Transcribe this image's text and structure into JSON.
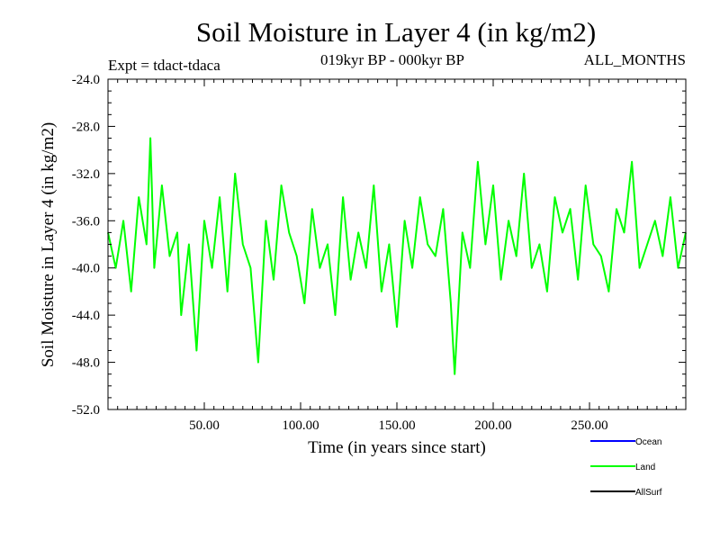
{
  "chart_data": {
    "type": "line",
    "title": "Soil Moisture in Layer 4 (in kg/m2)",
    "subtitle_left": "Expt = tdact-tdaca",
    "subtitle_center": "019kyr BP - 000kyr BP",
    "subtitle_right": "ALL_MONTHS",
    "xlabel": "Time (in years since start)",
    "ylabel": "Soil Moisture in Layer 4 (in kg/m2)",
    "xlim": [
      0,
      300
    ],
    "ylim": [
      -52,
      -24
    ],
    "x_ticks": [
      {
        "value": 50,
        "label": "50.00"
      },
      {
        "value": 100,
        "label": "100.00"
      },
      {
        "value": 150,
        "label": "150.00"
      },
      {
        "value": 200,
        "label": "200.00"
      },
      {
        "value": 250,
        "label": "250.00"
      }
    ],
    "y_ticks": [
      {
        "value": -24,
        "label": "-24.0"
      },
      {
        "value": -28,
        "label": "-28.0"
      },
      {
        "value": -32,
        "label": "-32.0"
      },
      {
        "value": -36,
        "label": "-36.0"
      },
      {
        "value": -40,
        "label": "-40.0"
      },
      {
        "value": -44,
        "label": "-44.0"
      },
      {
        "value": -48,
        "label": "-48.0"
      },
      {
        "value": -52,
        "label": "-52.0"
      }
    ],
    "grid": false,
    "legend_position": "bottom-right",
    "legend": [
      {
        "name": "Ocean",
        "color": "#0000ff"
      },
      {
        "name": "Land",
        "color": "#00ff00"
      },
      {
        "name": "AllSurf",
        "color": "#000000"
      }
    ],
    "series": [
      {
        "name": "Land",
        "color": "#00ff00",
        "x": [
          0,
          4,
          8,
          12,
          16,
          20,
          22,
          24,
          28,
          32,
          36,
          38,
          42,
          46,
          50,
          54,
          58,
          62,
          66,
          70,
          74,
          78,
          82,
          86,
          90,
          94,
          98,
          102,
          106,
          110,
          114,
          118,
          122,
          126,
          130,
          134,
          138,
          142,
          146,
          150,
          154,
          158,
          162,
          166,
          170,
          174,
          178,
          180,
          184,
          188,
          192,
          196,
          200,
          204,
          208,
          212,
          216,
          220,
          224,
          228,
          232,
          236,
          240,
          244,
          248,
          252,
          256,
          260,
          264,
          268,
          272,
          276,
          280,
          284,
          288,
          292,
          296,
          300
        ],
        "values": [
          -37,
          -40,
          -36,
          -42,
          -34,
          -38,
          -29,
          -40,
          -33,
          -39,
          -37,
          -44,
          -38,
          -47,
          -36,
          -40,
          -34,
          -42,
          -32,
          -38,
          -40,
          -48,
          -36,
          -41,
          -33,
          -37,
          -39,
          -43,
          -35,
          -40,
          -38,
          -44,
          -34,
          -41,
          -37,
          -40,
          -33,
          -42,
          -38,
          -45,
          -36,
          -40,
          -34,
          -38,
          -39,
          -35,
          -43,
          -49,
          -37,
          -40,
          -31,
          -38,
          -33,
          -41,
          -36,
          -39,
          -32,
          -40,
          -38,
          -42,
          -34,
          -37,
          -35,
          -41,
          -33,
          -38,
          -39,
          -42,
          -35,
          -37,
          -31,
          -40,
          -38,
          -36,
          -39,
          -34,
          -40,
          -37
        ]
      }
    ]
  }
}
